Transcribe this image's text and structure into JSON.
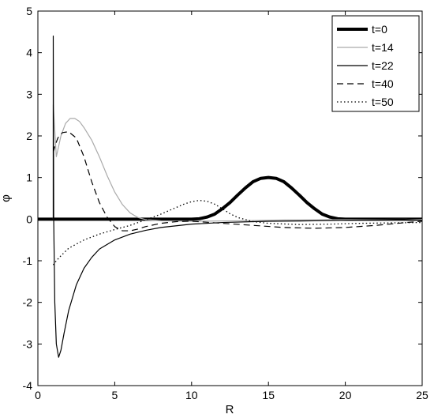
{
  "chart_data": {
    "type": "line",
    "xlabel": "R",
    "ylabel": "φ",
    "xlim": [
      0,
      25
    ],
    "ylim": [
      -4,
      5
    ],
    "xticks": [
      0,
      5,
      10,
      15,
      20,
      25
    ],
    "yticks": [
      -4,
      -3,
      -2,
      -1,
      0,
      1,
      2,
      3,
      4,
      5
    ],
    "grid": false,
    "legend_position": "top-right",
    "series": [
      {
        "name": "t=0",
        "style": "solid-thick",
        "color": "#000000",
        "x": [
          0,
          5,
          10,
          10.5,
          11,
          11.5,
          12,
          12.5,
          13,
          13.5,
          14,
          14.5,
          15,
          15.5,
          16,
          16.5,
          17,
          17.5,
          18,
          18.5,
          19,
          19.5,
          20,
          25
        ],
        "y": [
          0,
          0,
          0,
          0.01,
          0.05,
          0.12,
          0.25,
          0.4,
          0.58,
          0.75,
          0.9,
          0.98,
          1.0,
          0.98,
          0.9,
          0.75,
          0.58,
          0.4,
          0.25,
          0.12,
          0.05,
          0.01,
          0,
          0
        ]
      },
      {
        "name": "t=14",
        "style": "solid-gray",
        "color": "#aaaaaa",
        "x": [
          1.0,
          1.0,
          1.2,
          1.5,
          1.8,
          2.1,
          2.4,
          2.7,
          3.0,
          3.5,
          4.0,
          4.5,
          5.0,
          5.5,
          6.0,
          6.5,
          7.0,
          8.0,
          10.0,
          13.0,
          16.0,
          20.0,
          25.0
        ],
        "y": [
          0,
          2.75,
          1.5,
          2.0,
          2.3,
          2.42,
          2.42,
          2.35,
          2.2,
          1.9,
          1.5,
          1.05,
          0.65,
          0.35,
          0.15,
          0.04,
          -0.01,
          -0.04,
          -0.05,
          -0.04,
          -0.02,
          -0.01,
          0
        ]
      },
      {
        "name": "t=22",
        "style": "solid",
        "color": "#000000",
        "x": [
          1.0,
          1.0,
          1.03,
          1.1,
          1.2,
          1.35,
          1.5,
          1.7,
          2.0,
          2.5,
          3.0,
          3.5,
          4.0,
          5.0,
          6.0,
          7.0,
          8.0,
          10.0,
          12.0,
          15.0,
          18.0,
          21.0,
          24.0,
          25.0
        ],
        "y": [
          0,
          4.4,
          0.0,
          -2.0,
          -3.0,
          -3.32,
          -3.15,
          -2.75,
          -2.2,
          -1.58,
          -1.18,
          -0.92,
          -0.72,
          -0.5,
          -0.36,
          -0.27,
          -0.2,
          -0.12,
          -0.08,
          -0.05,
          -0.04,
          -0.02,
          0,
          0.02
        ]
      },
      {
        "name": "t=40",
        "style": "dashed",
        "color": "#000000",
        "x": [
          1.0,
          1.1,
          1.3,
          1.6,
          2.0,
          2.5,
          3.0,
          3.5,
          4.0,
          4.5,
          5.0,
          5.5,
          6.0,
          6.5,
          7.0,
          8.0,
          9.0,
          10.0,
          12.0,
          14.0,
          16.0,
          18.0,
          20.0,
          22.0,
          24.0,
          25.0
        ],
        "y": [
          1.6,
          1.75,
          1.95,
          2.08,
          2.1,
          1.95,
          1.5,
          0.9,
          0.4,
          0.05,
          -0.18,
          -0.28,
          -0.28,
          -0.24,
          -0.18,
          -0.1,
          -0.06,
          -0.05,
          -0.1,
          -0.15,
          -0.2,
          -0.22,
          -0.2,
          -0.15,
          -0.08,
          -0.05
        ]
      },
      {
        "name": "t=50",
        "style": "dotted",
        "color": "#000000",
        "x": [
          1.0,
          1.2,
          1.5,
          2.0,
          3.0,
          4.0,
          5.0,
          6.0,
          7.0,
          8.0,
          9.0,
          9.5,
          10.0,
          10.5,
          11.0,
          11.5,
          12.0,
          12.5,
          13.0,
          14.0,
          15.0,
          17.0,
          19.0,
          21.0,
          23.0,
          25.0
        ],
        "y": [
          -1.1,
          -1.0,
          -0.88,
          -0.7,
          -0.5,
          -0.36,
          -0.25,
          -0.15,
          -0.02,
          0.12,
          0.28,
          0.36,
          0.42,
          0.45,
          0.43,
          0.36,
          0.25,
          0.13,
          0.04,
          -0.06,
          -0.1,
          -0.13,
          -0.12,
          -0.1,
          -0.09,
          -0.08
        ]
      }
    ]
  }
}
